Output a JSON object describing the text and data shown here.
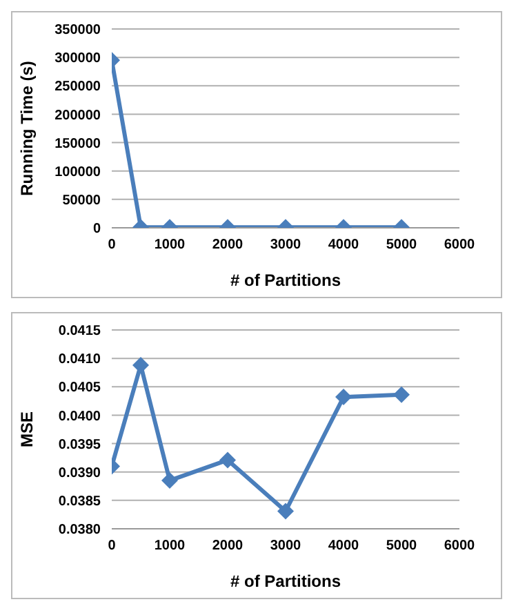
{
  "chart_data": [
    {
      "type": "line",
      "xlabel": "# of Partitions",
      "ylabel": "Running Time (s)",
      "x": [
        0,
        500,
        1000,
        2000,
        3000,
        4000,
        5000
      ],
      "series": [
        {
          "color": "#4a7ebb",
          "values": [
            295000,
            1000,
            1000,
            1000,
            1000,
            1000,
            1000
          ]
        }
      ],
      "xlim": [
        0,
        6000
      ],
      "xticks": [
        0,
        1000,
        2000,
        3000,
        4000,
        5000,
        6000
      ],
      "ylim": [
        0,
        350000
      ],
      "yticks": [
        0,
        50000,
        100000,
        150000,
        200000,
        250000,
        300000,
        350000
      ],
      "grid": "y",
      "marker": "diamond",
      "line_style": "solid",
      "legend": false
    },
    {
      "type": "line",
      "xlabel": "# of Partitions",
      "ylabel": "MSE",
      "x": [
        0,
        500,
        1000,
        2000,
        3000,
        4000,
        5000
      ],
      "series": [
        {
          "color": "#4a7ebb",
          "values": [
            0.0391,
            0.04088,
            0.03885,
            0.03921,
            0.03831,
            0.04032,
            0.04036
          ]
        }
      ],
      "xlim": [
        0,
        6000
      ],
      "xticks": [
        0,
        1000,
        2000,
        3000,
        4000,
        5000,
        6000
      ],
      "ylim": [
        0.038,
        0.0415
      ],
      "yticks": [
        {
          "value": 0.038,
          "label": "0.0380"
        },
        {
          "value": 0.0385,
          "label": "0.0385"
        },
        {
          "value": 0.039,
          "label": "0.0390"
        },
        {
          "value": 0.0395,
          "label": "0.0395"
        },
        {
          "value": 0.04,
          "label": "0.0400"
        },
        {
          "value": 0.0405,
          "label": "0.0405"
        },
        {
          "value": 0.041,
          "label": "0.0410"
        },
        {
          "value": 0.0415,
          "label": "0.0415"
        }
      ],
      "grid": "y",
      "marker": "diamond",
      "line_style": "solid",
      "legend": false
    }
  ]
}
